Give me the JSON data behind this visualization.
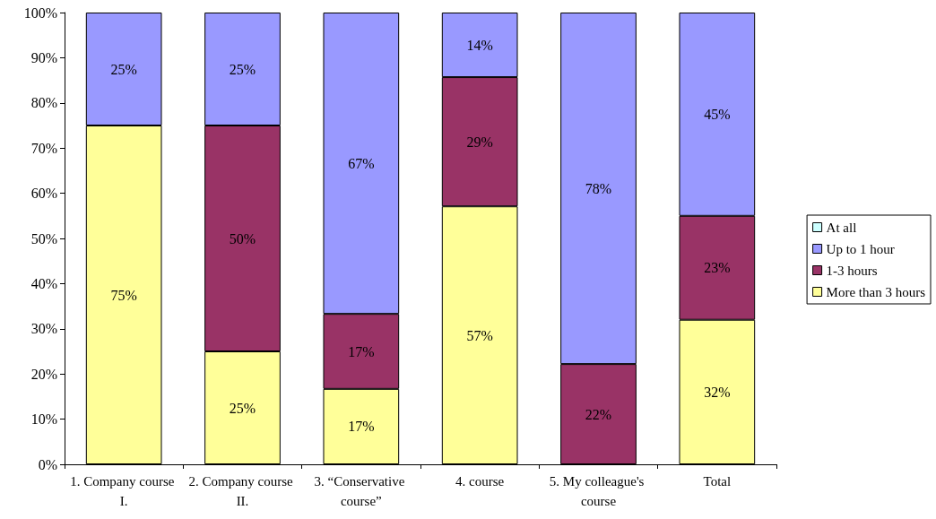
{
  "chart_data": {
    "type": "bar",
    "stacked": true,
    "categories": [
      "1. Company course I.",
      "2. Company course II.",
      "3. “Conservative course”",
      "4. course",
      "5. My colleague's course",
      "Total"
    ],
    "series": [
      {
        "name": "More than 3 hours",
        "color": "#ffff99",
        "values": [
          75,
          25,
          16.7,
          57.1,
          0,
          32
        ],
        "value_labels": [
          "75%",
          "25%",
          "17%",
          "57%",
          null,
          "32%"
        ]
      },
      {
        "name": "1-3 hours",
        "color": "#993366",
        "values": [
          0,
          50,
          16.6,
          28.6,
          22.2,
          23
        ],
        "value_labels": [
          null,
          "50%",
          "17%",
          "29%",
          "22%",
          "23%"
        ]
      },
      {
        "name": "Up to 1 hour",
        "color": "#9999ff",
        "values": [
          25,
          25,
          66.7,
          14.3,
          77.8,
          45
        ],
        "value_labels": [
          "25%",
          "25%",
          "67%",
          "14%",
          "78%",
          "45%"
        ]
      },
      {
        "name": "At all",
        "color": "#ccffff",
        "values": [
          0,
          0,
          0,
          0,
          0,
          0
        ],
        "value_labels": [
          null,
          null,
          null,
          null,
          null,
          null
        ]
      }
    ],
    "ylim": [
      0,
      100
    ],
    "yticks": [
      {
        "value": 0,
        "label": "0%"
      },
      {
        "value": 10,
        "label": "10%"
      },
      {
        "value": 20,
        "label": "20%"
      },
      {
        "value": 30,
        "label": "30%"
      },
      {
        "value": 40,
        "label": "40%"
      },
      {
        "value": 50,
        "label": "50%"
      },
      {
        "value": 60,
        "label": "60%"
      },
      {
        "value": 70,
        "label": "70%"
      },
      {
        "value": 80,
        "label": "80%"
      },
      {
        "value": 90,
        "label": "90%"
      },
      {
        "value": 100,
        "label": "100%"
      }
    ],
    "grid": false,
    "legend": "right"
  }
}
